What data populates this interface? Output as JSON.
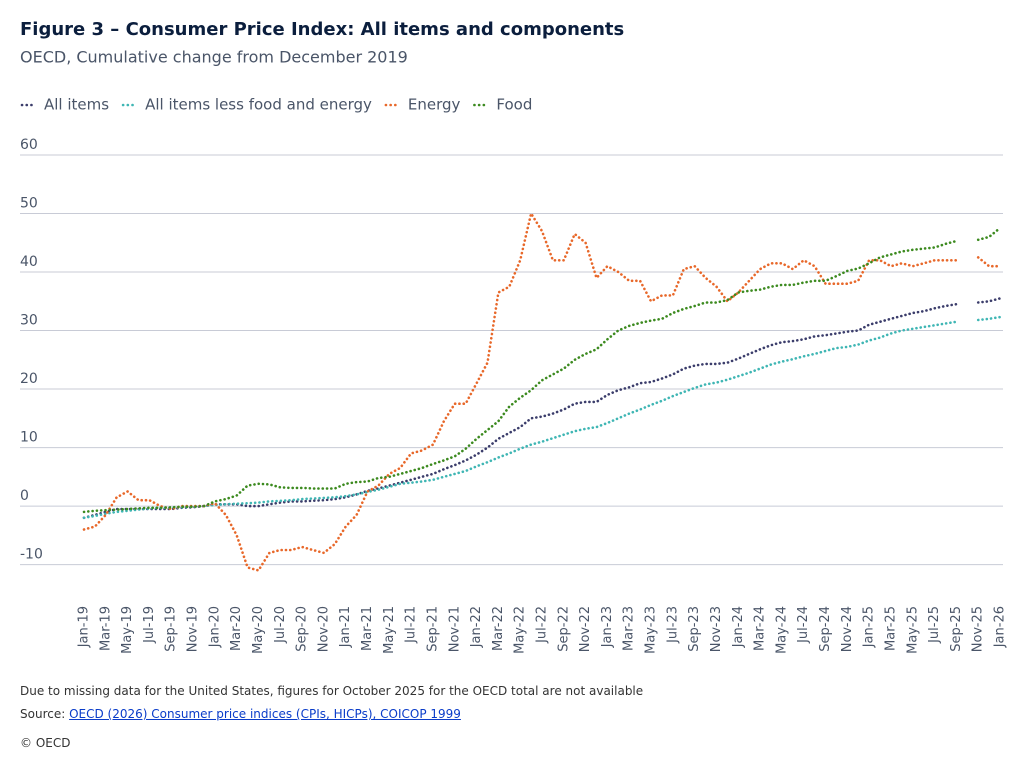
{
  "chart_data": {
    "type": "line",
    "title": "Figure 3 – Consumer Price Index: All items and components",
    "subtitle": "OECD, Cumulative change from December 2019",
    "categories": [
      "Jan-19",
      null,
      "Mar-19",
      null,
      "May-19",
      null,
      "Jul-19",
      null,
      "Sep-19",
      null,
      "Nov-19",
      null,
      "Jan-20",
      null,
      "Mar-20",
      null,
      "May-20",
      null,
      "Jul-20",
      null,
      "Sep-20",
      null,
      "Nov-20",
      null,
      "Jan-21",
      null,
      "Mar-21",
      null,
      "May-21",
      null,
      "Jul-21",
      null,
      "Sep-21",
      null,
      "Nov-21",
      null,
      "Jan-22",
      null,
      "Mar-22",
      null,
      "May-22",
      null,
      "Jul-22",
      null,
      "Sep-22",
      null,
      "Nov-22",
      null,
      "Jan-23",
      null,
      "Mar-23",
      null,
      "May-23",
      null,
      "Jul-23",
      null,
      "Sep-23",
      null,
      "Nov-23",
      null,
      "Jan-24",
      null,
      "Mar-24",
      null,
      "May-24",
      null,
      "Jul-24",
      null,
      "Sep-24",
      null,
      "Nov-24",
      null,
      "Jan-25",
      null,
      "Mar-25",
      null,
      "May-25",
      null,
      "Jul-25",
      null,
      "Sep-25",
      null,
      "Nov-25",
      null,
      "Jan-26"
    ],
    "series": [
      {
        "name": "All items",
        "color": "#3b3d6b",
        "values": [
          -2,
          -1.5,
          -1,
          -0.5,
          -0.5,
          -0.5,
          -0.5,
          -0.5,
          -0.5,
          -0.3,
          -0.2,
          0,
          0.3,
          0.3,
          0.3,
          0,
          0,
          0.3,
          0.6,
          0.8,
          0.8,
          0.9,
          1,
          1.2,
          1.5,
          2,
          2.6,
          3,
          3.5,
          4,
          4.5,
          5,
          5.5,
          6.3,
          7,
          7.8,
          8.8,
          10,
          11.5,
          12.5,
          13.5,
          15,
          15.3,
          15.8,
          16.5,
          17.5,
          17.8,
          17.8,
          19,
          19.8,
          20.3,
          21,
          21.2,
          21.8,
          22.5,
          23.5,
          24,
          24.3,
          24.3,
          24.5,
          25.2,
          26,
          26.8,
          27.5,
          28,
          28.2,
          28.5,
          29,
          29.2,
          29.5,
          29.8,
          30,
          31,
          31.5,
          32,
          32.5,
          33,
          33.3,
          33.8,
          34.2,
          34.5,
          null,
          34.8,
          35,
          35.5
        ]
      },
      {
        "name": "All items less food and energy",
        "color": "#3fb6b4",
        "values": [
          -2,
          -1.7,
          -1.3,
          -1,
          -0.8,
          -0.6,
          -0.4,
          -0.3,
          -0.3,
          -0.2,
          -0.1,
          0,
          0.2,
          0.3,
          0.4,
          0.5,
          0.6,
          0.8,
          0.9,
          1,
          1.2,
          1.3,
          1.4,
          1.5,
          1.7,
          2,
          2.4,
          2.8,
          3.3,
          3.8,
          4,
          4.2,
          4.5,
          5,
          5.5,
          6,
          6.8,
          7.5,
          8.3,
          9,
          9.8,
          10.5,
          11,
          11.6,
          12.2,
          12.8,
          13.2,
          13.5,
          14.2,
          15,
          15.8,
          16.5,
          17.3,
          18,
          18.8,
          19.5,
          20.2,
          20.8,
          21.1,
          21.6,
          22.2,
          22.8,
          23.5,
          24.2,
          24.7,
          25.1,
          25.6,
          26,
          26.5,
          27,
          27.2,
          27.6,
          28.3,
          28.8,
          29.5,
          30,
          30.3,
          30.6,
          30.9,
          31.2,
          31.5,
          null,
          31.8,
          32,
          32.3
        ]
      },
      {
        "name": "Energy",
        "color": "#e8682a",
        "values": [
          -4,
          -3.5,
          -1.5,
          1.5,
          2.5,
          1,
          1,
          0,
          -0.5,
          0,
          0,
          0,
          0.5,
          -1.5,
          -5,
          -10.5,
          -11,
          -8,
          -7.5,
          -7.5,
          -7,
          -7.5,
          -8,
          -6.5,
          -3.5,
          -1.5,
          2.5,
          3.5,
          5.5,
          6.5,
          9,
          9.5,
          10.5,
          14.5,
          17.5,
          17.5,
          21,
          24.5,
          36.5,
          37.5,
          42,
          50,
          47,
          42,
          42,
          46.5,
          45,
          39,
          41,
          40,
          38.5,
          38.5,
          35,
          36,
          36,
          40.5,
          41,
          39,
          37.5,
          35,
          36.5,
          38.5,
          40.5,
          41.5,
          41.5,
          40.5,
          42,
          41,
          38,
          38,
          38,
          38.5,
          42,
          42,
          41,
          41.5,
          41,
          41.5,
          42,
          42,
          42,
          null,
          42.5,
          41,
          41
        ]
      },
      {
        "name": "Food",
        "color": "#3c8a1f",
        "values": [
          -1,
          -0.8,
          -0.7,
          -0.6,
          -0.5,
          -0.4,
          -0.3,
          -0.3,
          -0.2,
          -0.1,
          -0.1,
          0,
          0.8,
          1.2,
          1.8,
          3.5,
          3.8,
          3.7,
          3.2,
          3.1,
          3.1,
          3,
          3,
          3,
          3.8,
          4.1,
          4.2,
          4.8,
          5,
          5.5,
          6,
          6.5,
          7.2,
          7.8,
          8.5,
          9.8,
          11.5,
          13,
          14.5,
          17,
          18.5,
          19.8,
          21.5,
          22.5,
          23.5,
          25,
          26,
          26.8,
          28.5,
          30,
          30.8,
          31.3,
          31.7,
          32,
          33,
          33.7,
          34.2,
          34.8,
          34.8,
          35.2,
          36.5,
          36.8,
          37,
          37.5,
          37.8,
          37.8,
          38.2,
          38.5,
          38.5,
          39.3,
          40.2,
          40.6,
          41.5,
          42.5,
          43,
          43.5,
          43.8,
          44,
          44.2,
          44.8,
          45.3,
          null,
          45.5,
          46,
          47.5
        ]
      }
    ],
    "ylim": [
      -14,
      60
    ],
    "yticks": [
      -10,
      0,
      10,
      20,
      30,
      40,
      50,
      60
    ],
    "grid": true,
    "legend": "top",
    "note": "Due to missing data for the United States, figures for October 2025 for the OECD total are not available",
    "source_label": "Source:",
    "source": "OECD (2026) Consumer price indices (CPIs, HICPs), COICOP 1999",
    "copyright": "© OECD"
  }
}
